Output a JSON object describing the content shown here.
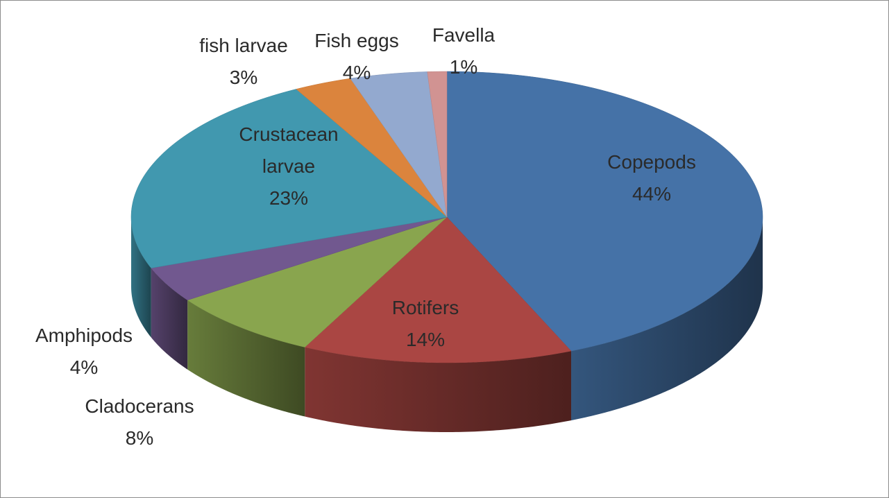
{
  "chart_data": {
    "type": "pie3d",
    "categories": [
      "Copepods",
      "Rotifers",
      "Cladocerans",
      "Amphipods",
      "Crustacean larvae",
      "fish larvae",
      "Fish eggs",
      "Favella"
    ],
    "values": [
      44,
      14,
      8,
      4,
      23,
      3,
      4,
      1
    ],
    "value_labels": [
      "44%",
      "14%",
      "8%",
      "4%",
      "23%",
      "3%",
      "4%",
      "1%"
    ],
    "colors": [
      "#4572a7",
      "#aa4643",
      "#89a54e",
      "#71588f",
      "#4198af",
      "#db843d",
      "#93a9cf",
      "#d19392"
    ]
  }
}
